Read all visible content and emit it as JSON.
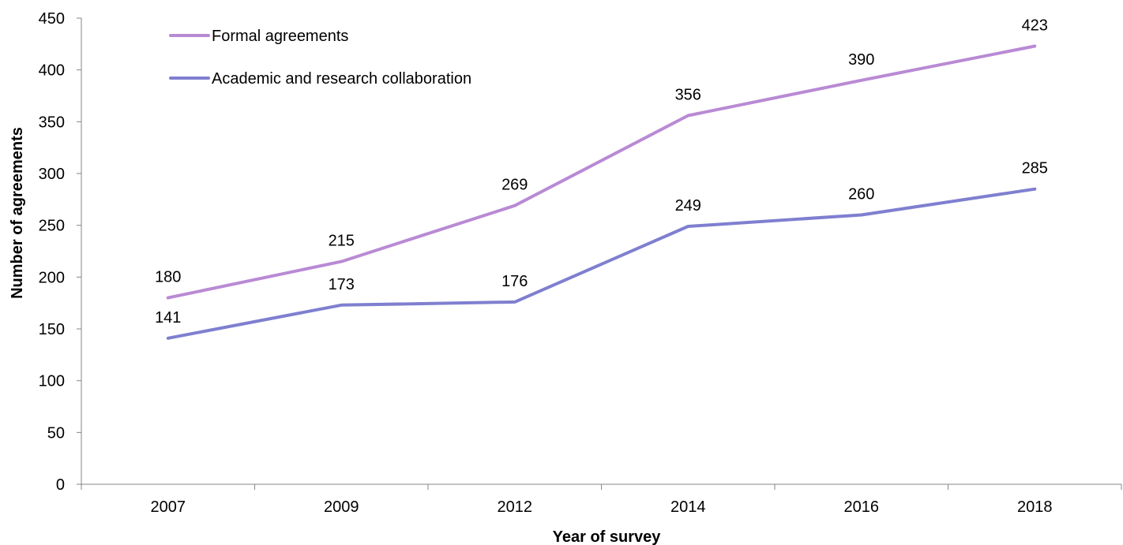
{
  "chart_data": {
    "type": "line",
    "categories": [
      "2007",
      "2009",
      "2012",
      "2014",
      "2016",
      "2018"
    ],
    "series": [
      {
        "name": "Formal agreements",
        "values": [
          180,
          215,
          269,
          356,
          390,
          423
        ],
        "color": "#b98ad4"
      },
      {
        "name": "Academic and research collaboration",
        "values": [
          141,
          173,
          176,
          249,
          260,
          285
        ],
        "color": "#7f7fd0"
      }
    ],
    "xlabel": "Year of survey",
    "ylabel": "Number of agreements",
    "ylim": [
      0,
      450
    ],
    "yticks": [
      0,
      50,
      100,
      150,
      200,
      250,
      300,
      350,
      400,
      450
    ],
    "grid": false,
    "legend_position": "top-left",
    "data_labels": true
  }
}
